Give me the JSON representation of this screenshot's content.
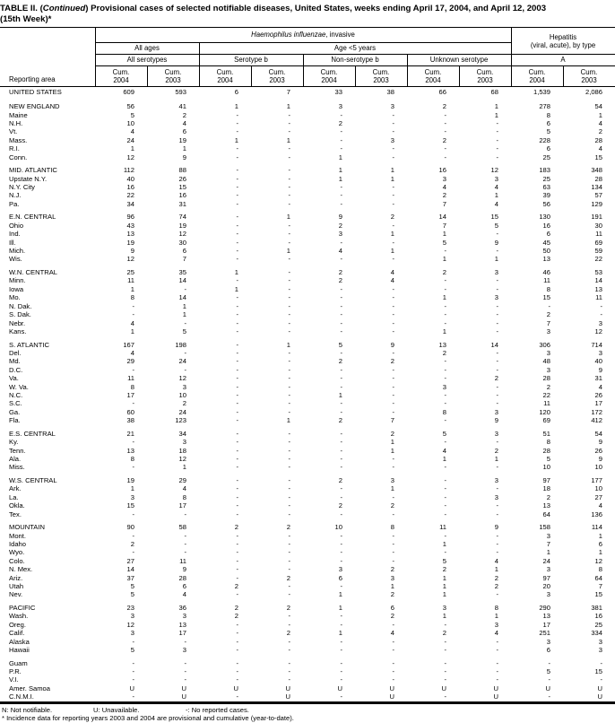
{
  "title": {
    "part1": "TABLE II. (",
    "continued": "Continued",
    "part2": ") Provisional cases of selected notifiable diseases, United States, weeks ending April 17, 2004, and April 12, 2003",
    "line2": "(15th Week)*"
  },
  "header": {
    "reporting_area": "Reporting area",
    "haemophilus_italic": "Haemophilus influenzae",
    "haemophilus_rest": ", invasive",
    "hepatitis_line1": "Hepatitis",
    "hepatitis_line2": "(viral, acute), by type",
    "all_ages": "All ages",
    "age_under5": "Age <5 years",
    "subgroups": [
      "All serotypes",
      "Serotype b",
      "Non-serotype b",
      "Unknown serotype",
      "A"
    ],
    "cum_label": "Cum.",
    "years": [
      "2004",
      "2003"
    ]
  },
  "groups": [
    {
      "rows": [
        [
          "UNITED STATES",
          "609",
          "593",
          "6",
          "7",
          "33",
          "38",
          "66",
          "68",
          "1,539",
          "2,086"
        ]
      ]
    },
    {
      "rows": [
        [
          "NEW ENGLAND",
          "56",
          "41",
          "1",
          "1",
          "3",
          "3",
          "2",
          "1",
          "278",
          "54"
        ],
        [
          "Maine",
          "5",
          "2",
          "-",
          "-",
          "-",
          "-",
          "-",
          "1",
          "8",
          "1"
        ],
        [
          "N.H.",
          "10",
          "4",
          "-",
          "-",
          "2",
          "-",
          "-",
          "-",
          "6",
          "4"
        ],
        [
          "Vt.",
          "4",
          "6",
          "-",
          "-",
          "-",
          "-",
          "-",
          "-",
          "5",
          "2"
        ],
        [
          "Mass.",
          "24",
          "19",
          "1",
          "1",
          "-",
          "3",
          "2",
          "-",
          "228",
          "28"
        ],
        [
          "R.I.",
          "1",
          "1",
          "-",
          "-",
          "-",
          "-",
          "-",
          "-",
          "6",
          "4"
        ],
        [
          "Conn.",
          "12",
          "9",
          "-",
          "-",
          "1",
          "-",
          "-",
          "-",
          "25",
          "15"
        ]
      ]
    },
    {
      "rows": [
        [
          "MID. ATLANTIC",
          "112",
          "88",
          "-",
          "-",
          "1",
          "1",
          "16",
          "12",
          "183",
          "348"
        ],
        [
          "Upstate N.Y.",
          "40",
          "26",
          "-",
          "-",
          "1",
          "1",
          "3",
          "3",
          "25",
          "28"
        ],
        [
          "N.Y. City",
          "16",
          "15",
          "-",
          "-",
          "-",
          "-",
          "4",
          "4",
          "63",
          "134"
        ],
        [
          "N.J.",
          "22",
          "16",
          "-",
          "-",
          "-",
          "-",
          "2",
          "1",
          "39",
          "57"
        ],
        [
          "Pa.",
          "34",
          "31",
          "-",
          "-",
          "-",
          "-",
          "7",
          "4",
          "56",
          "129"
        ]
      ]
    },
    {
      "rows": [
        [
          "E.N. CENTRAL",
          "96",
          "74",
          "-",
          "1",
          "9",
          "2",
          "14",
          "15",
          "130",
          "191"
        ],
        [
          "Ohio",
          "43",
          "19",
          "-",
          "-",
          "2",
          "-",
          "7",
          "5",
          "16",
          "30"
        ],
        [
          "Ind.",
          "13",
          "12",
          "-",
          "-",
          "3",
          "1",
          "1",
          "-",
          "6",
          "11"
        ],
        [
          "Ill.",
          "19",
          "30",
          "-",
          "-",
          "-",
          "-",
          "5",
          "9",
          "45",
          "69"
        ],
        [
          "Mich.",
          "9",
          "6",
          "-",
          "1",
          "4",
          "1",
          "-",
          "-",
          "50",
          "59"
        ],
        [
          "Wis.",
          "12",
          "7",
          "-",
          "-",
          "-",
          "-",
          "1",
          "1",
          "13",
          "22"
        ]
      ]
    },
    {
      "rows": [
        [
          "W.N. CENTRAL",
          "25",
          "35",
          "1",
          "-",
          "2",
          "4",
          "2",
          "3",
          "46",
          "53"
        ],
        [
          "Minn.",
          "11",
          "14",
          "-",
          "-",
          "2",
          "4",
          "-",
          "-",
          "11",
          "14"
        ],
        [
          "Iowa",
          "1",
          "-",
          "1",
          "-",
          "-",
          "-",
          "-",
          "-",
          "8",
          "13"
        ],
        [
          "Mo.",
          "8",
          "14",
          "-",
          "-",
          "-",
          "-",
          "1",
          "3",
          "15",
          "11"
        ],
        [
          "N. Dak.",
          "-",
          "1",
          "-",
          "-",
          "-",
          "-",
          "-",
          "-",
          "-",
          "-"
        ],
        [
          "S. Dak.",
          "-",
          "1",
          "-",
          "-",
          "-",
          "-",
          "-",
          "-",
          "2",
          "-"
        ],
        [
          "Nebr.",
          "4",
          "-",
          "-",
          "-",
          "-",
          "-",
          "-",
          "-",
          "7",
          "3"
        ],
        [
          "Kans.",
          "1",
          "5",
          "-",
          "-",
          "-",
          "-",
          "1",
          "-",
          "3",
          "12"
        ]
      ]
    },
    {
      "rows": [
        [
          "S. ATLANTIC",
          "167",
          "198",
          "-",
          "1",
          "5",
          "9",
          "13",
          "14",
          "306",
          "714"
        ],
        [
          "Del.",
          "4",
          "-",
          "-",
          "-",
          "-",
          "-",
          "2",
          "-",
          "3",
          "3"
        ],
        [
          "Md.",
          "29",
          "24",
          "-",
          "-",
          "2",
          "2",
          "-",
          "-",
          "48",
          "40"
        ],
        [
          "D.C.",
          "-",
          "-",
          "-",
          "-",
          "-",
          "-",
          "-",
          "-",
          "3",
          "9"
        ],
        [
          "Va.",
          "11",
          "12",
          "-",
          "-",
          "-",
          "-",
          "-",
          "2",
          "28",
          "31"
        ],
        [
          "W. Va.",
          "8",
          "3",
          "-",
          "-",
          "-",
          "-",
          "3",
          "-",
          "2",
          "4"
        ],
        [
          "N.C.",
          "17",
          "10",
          "-",
          "-",
          "1",
          "-",
          "-",
          "-",
          "22",
          "26"
        ],
        [
          "S.C.",
          "-",
          "2",
          "-",
          "-",
          "-",
          "-",
          "-",
          "-",
          "11",
          "17"
        ],
        [
          "Ga.",
          "60",
          "24",
          "-",
          "-",
          "-",
          "-",
          "8",
          "3",
          "120",
          "172"
        ],
        [
          "Fla.",
          "38",
          "123",
          "-",
          "1",
          "2",
          "7",
          "-",
          "9",
          "69",
          "412"
        ]
      ]
    },
    {
      "rows": [
        [
          "E.S. CENTRAL",
          "21",
          "34",
          "-",
          "-",
          "-",
          "2",
          "5",
          "3",
          "51",
          "54"
        ],
        [
          "Ky.",
          "-",
          "3",
          "-",
          "-",
          "-",
          "1",
          "-",
          "-",
          "8",
          "9"
        ],
        [
          "Tenn.",
          "13",
          "18",
          "-",
          "-",
          "-",
          "1",
          "4",
          "2",
          "28",
          "26"
        ],
        [
          "Ala.",
          "8",
          "12",
          "-",
          "-",
          "-",
          "-",
          "1",
          "1",
          "5",
          "9"
        ],
        [
          "Miss.",
          "-",
          "1",
          "-",
          "-",
          "-",
          "-",
          "-",
          "-",
          "10",
          "10"
        ]
      ]
    },
    {
      "rows": [
        [
          "W.S. CENTRAL",
          "19",
          "29",
          "-",
          "-",
          "2",
          "3",
          "-",
          "3",
          "97",
          "177"
        ],
        [
          "Ark.",
          "1",
          "4",
          "-",
          "-",
          "-",
          "1",
          "-",
          "-",
          "18",
          "10"
        ],
        [
          "La.",
          "3",
          "8",
          "-",
          "-",
          "-",
          "-",
          "-",
          "3",
          "2",
          "27"
        ],
        [
          "Okla.",
          "15",
          "17",
          "-",
          "-",
          "2",
          "2",
          "-",
          "-",
          "13",
          "4"
        ],
        [
          "Tex.",
          "-",
          "-",
          "-",
          "-",
          "-",
          "-",
          "-",
          "-",
          "64",
          "136"
        ]
      ]
    },
    {
      "rows": [
        [
          "MOUNTAIN",
          "90",
          "58",
          "2",
          "2",
          "10",
          "8",
          "11",
          "9",
          "158",
          "114"
        ],
        [
          "Mont.",
          "-",
          "-",
          "-",
          "-",
          "-",
          "-",
          "-",
          "-",
          "3",
          "1"
        ],
        [
          "Idaho",
          "2",
          "-",
          "-",
          "-",
          "-",
          "-",
          "1",
          "-",
          "7",
          "6"
        ],
        [
          "Wyo.",
          "-",
          "-",
          "-",
          "-",
          "-",
          "-",
          "-",
          "-",
          "1",
          "1"
        ],
        [
          "Colo.",
          "27",
          "11",
          "-",
          "-",
          "-",
          "-",
          "5",
          "4",
          "24",
          "12"
        ],
        [
          "N. Mex.",
          "14",
          "9",
          "-",
          "-",
          "3",
          "2",
          "2",
          "1",
          "3",
          "8"
        ],
        [
          "Ariz.",
          "37",
          "28",
          "-",
          "2",
          "6",
          "3",
          "1",
          "2",
          "97",
          "64"
        ],
        [
          "Utah",
          "5",
          "6",
          "2",
          "-",
          "-",
          "1",
          "1",
          "2",
          "20",
          "7"
        ],
        [
          "Nev.",
          "5",
          "4",
          "-",
          "-",
          "1",
          "2",
          "1",
          "-",
          "3",
          "15"
        ]
      ]
    },
    {
      "rows": [
        [
          "PACIFIC",
          "23",
          "36",
          "2",
          "2",
          "1",
          "6",
          "3",
          "8",
          "290",
          "381"
        ],
        [
          "Wash.",
          "3",
          "3",
          "2",
          "-",
          "-",
          "2",
          "1",
          "1",
          "13",
          "16"
        ],
        [
          "Oreg.",
          "12",
          "13",
          "-",
          "-",
          "-",
          "-",
          "-",
          "3",
          "17",
          "25"
        ],
        [
          "Calif.",
          "3",
          "17",
          "-",
          "2",
          "1",
          "4",
          "2",
          "4",
          "251",
          "334"
        ],
        [
          "Alaska",
          "-",
          "-",
          "-",
          "-",
          "-",
          "-",
          "-",
          "-",
          "3",
          "3"
        ],
        [
          "Hawaii",
          "5",
          "3",
          "-",
          "-",
          "-",
          "-",
          "-",
          "-",
          "6",
          "3"
        ]
      ]
    },
    {
      "rows": [
        [
          "Guam",
          "-",
          "-",
          "-",
          "-",
          "-",
          "-",
          "-",
          "-",
          "-",
          "-"
        ],
        [
          "P.R.",
          "-",
          "-",
          "-",
          "-",
          "-",
          "-",
          "-",
          "-",
          "5",
          "15"
        ],
        [
          "V.I.",
          "-",
          "-",
          "-",
          "-",
          "-",
          "-",
          "-",
          "-",
          "-",
          "-"
        ],
        [
          "Amer. Samoa",
          "U",
          "U",
          "U",
          "U",
          "U",
          "U",
          "U",
          "U",
          "U",
          "U"
        ],
        [
          "C.N.M.I.",
          "-",
          "U",
          "-",
          "U",
          "-",
          "U",
          "-",
          "U",
          "-",
          "U"
        ]
      ]
    }
  ],
  "footnotes": {
    "legend_n": "N: Not notifiable.",
    "legend_u": "U: Unavailable.",
    "legend_dash": "-: No reported cases.",
    "note": "* Incidence data for reporting years 2003 and 2004 are provisional and cumulative (year-to-date)."
  }
}
